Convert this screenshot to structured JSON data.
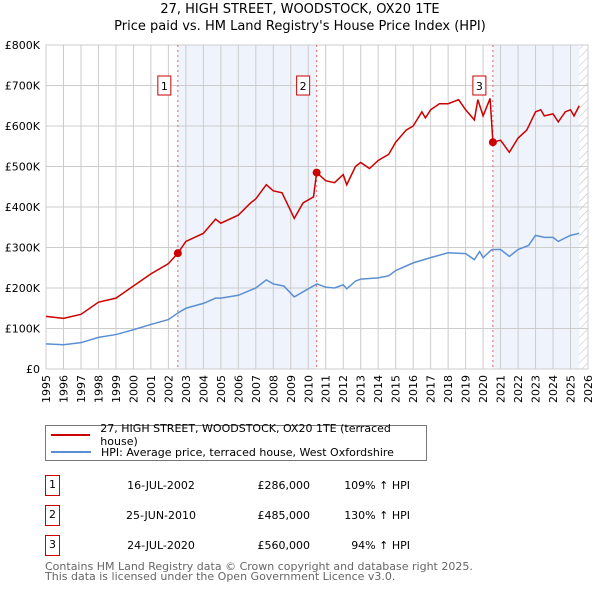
{
  "chart_data": {
    "type": "line",
    "title": "27, HIGH STREET, WOODSTOCK, OX20 1TE",
    "subtitle": "Price paid vs. HM Land Registry's House Price Index (HPI)",
    "xlim": [
      1995,
      2026
    ],
    "ylim": [
      0,
      800000
    ],
    "xticks": [
      "1995",
      "1996",
      "1997",
      "1998",
      "1999",
      "2000",
      "2001",
      "2002",
      "2003",
      "2004",
      "2005",
      "2006",
      "2007",
      "2008",
      "2009",
      "2010",
      "2011",
      "2012",
      "2013",
      "2014",
      "2015",
      "2016",
      "2017",
      "2018",
      "2019",
      "2020",
      "2021",
      "2022",
      "2023",
      "2024",
      "2025",
      "2026"
    ],
    "yticks": [
      {
        "v": 0,
        "label": "£0"
      },
      {
        "v": 100000,
        "label": "£100K"
      },
      {
        "v": 200000,
        "label": "£200K"
      },
      {
        "v": 300000,
        "label": "£300K"
      },
      {
        "v": 400000,
        "label": "£400K"
      },
      {
        "v": 500000,
        "label": "£500K"
      },
      {
        "v": 600000,
        "label": "£600K"
      },
      {
        "v": 700000,
        "label": "£700K"
      },
      {
        "v": 800000,
        "label": "£800K"
      }
    ],
    "grid": true,
    "series": [
      {
        "name": "27, HIGH STREET, WOODSTOCK, OX20 1TE (terraced house)",
        "color": "#cc0000",
        "x": [
          1995,
          1996,
          1997,
          1998,
          1999,
          2000,
          2001,
          2002,
          2002.54,
          2003,
          2004,
          2004.7,
          2005,
          2006,
          2006.7,
          2007,
          2007.6,
          2008,
          2008.5,
          2009,
          2009.2,
          2009.7,
          2010.3,
          2010.48,
          2011,
          2011.5,
          2012,
          2012.2,
          2012.7,
          2013,
          2013.5,
          2014,
          2014.6,
          2015,
          2015.6,
          2016,
          2016.5,
          2016.7,
          2017,
          2017.5,
          2018,
          2018.6,
          2019,
          2019.5,
          2019.7,
          2020,
          2020.4,
          2020.56,
          2021,
          2021.5,
          2022,
          2022.5,
          2023,
          2023.3,
          2023.5,
          2024,
          2024.3,
          2024.7,
          2025,
          2025.2,
          2025.5
        ],
        "y": [
          130000,
          125000,
          135000,
          165000,
          175000,
          205000,
          235000,
          260000,
          286000,
          315000,
          335000,
          370000,
          360000,
          380000,
          410000,
          420000,
          455000,
          440000,
          435000,
          390000,
          372000,
          410000,
          425000,
          485000,
          465000,
          460000,
          480000,
          455000,
          500000,
          510000,
          495000,
          515000,
          530000,
          560000,
          590000,
          600000,
          635000,
          620000,
          640000,
          655000,
          655000,
          665000,
          640000,
          615000,
          665000,
          625000,
          668000,
          560000,
          565000,
          535000,
          570000,
          590000,
          635000,
          640000,
          625000,
          630000,
          610000,
          635000,
          640000,
          625000,
          650000
        ]
      },
      {
        "name": "HPI: Average price, terraced house, West Oxfordshire",
        "color": "#5b8fd4",
        "x": [
          1995,
          1996,
          1997,
          1998,
          1999,
          2000,
          2001,
          2002,
          2002.5,
          2003,
          2004,
          2004.7,
          2005,
          2006,
          2007,
          2007.6,
          2008,
          2008.6,
          2009.2,
          2010,
          2010.5,
          2011,
          2011.5,
          2012,
          2012.2,
          2012.7,
          2013,
          2014,
          2014.6,
          2015,
          2016,
          2017,
          2018,
          2019,
          2019.5,
          2019.8,
          2020,
          2020.5,
          2021,
          2021.5,
          2022,
          2022.6,
          2023,
          2023.5,
          2024,
          2024.3,
          2025,
          2025.5
        ],
        "y": [
          62000,
          60000,
          65000,
          78000,
          85000,
          97000,
          110000,
          122000,
          137000,
          150000,
          162000,
          175000,
          175000,
          182000,
          200000,
          220000,
          210000,
          205000,
          178000,
          198000,
          210000,
          202000,
          200000,
          208000,
          198000,
          217000,
          222000,
          225000,
          230000,
          243000,
          262000,
          275000,
          287000,
          285000,
          270000,
          290000,
          275000,
          295000,
          295000,
          278000,
          295000,
          305000,
          330000,
          325000,
          325000,
          315000,
          330000,
          335000
        ]
      }
    ],
    "sales": [
      {
        "num": "1",
        "x": 2002.54,
        "y": 286000,
        "date": "16-JUL-2002",
        "price": "£286,000",
        "hpi": "109% ↑ HPI"
      },
      {
        "num": "2",
        "x": 2010.48,
        "y": 485000,
        "date": "25-JUN-2010",
        "price": "£485,000",
        "hpi": "130% ↑ HPI"
      },
      {
        "num": "3",
        "x": 2020.56,
        "y": 560000,
        "date": "24-JUL-2020",
        "price": "£560,000",
        "hpi": "94% ↑ HPI"
      }
    ],
    "forecast_start": 2025.5
  },
  "footer": [
    "Contains HM Land Registry data © Crown copyright and database right 2025.",
    "This data is licensed under the Open Government Licence v3.0."
  ]
}
